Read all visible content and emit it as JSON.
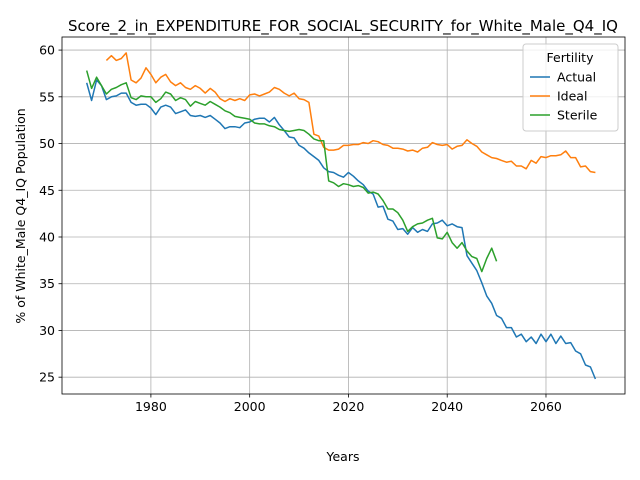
{
  "chart_data": {
    "type": "line",
    "title": "Score_2_in_EXPENDITURE_FOR_SOCIAL_SECURITY_for_White_Male_Q4_IQ",
    "xlabel": "Years",
    "ylabel": "% of White_Male Q4_IQ Population",
    "xlim": [
      1962,
      2076
    ],
    "ylim": [
      23.2,
      61.4
    ],
    "xticks": [
      1980,
      2000,
      2020,
      2040,
      2060
    ],
    "yticks": [
      25,
      30,
      35,
      40,
      45,
      50,
      55,
      60
    ],
    "grid": true,
    "legend": {
      "title": "Fertility",
      "placement": "top-right"
    },
    "series": [
      {
        "name": "Actual",
        "color": "#1f77b4",
        "x": [
          1967,
          1968,
          1969,
          1970,
          1971,
          1972,
          1973,
          1974,
          1975,
          1976,
          1977,
          1978,
          1979,
          1980,
          1981,
          1982,
          1983,
          1984,
          1985,
          1986,
          1987,
          1988,
          1989,
          1990,
          1991,
          1992,
          1993,
          1994,
          1995,
          1996,
          1997,
          1998,
          1999,
          2000,
          2001,
          2002,
          2003,
          2004,
          2005,
          2006,
          2007,
          2008,
          2009,
          2010,
          2011,
          2012,
          2013,
          2014,
          2015,
          2016,
          2017,
          2018,
          2019,
          2020,
          2021,
          2022,
          2023,
          2024,
          2025,
          2026,
          2027,
          2028,
          2029,
          2030,
          2031,
          2032,
          2033,
          2034,
          2035,
          2036,
          2037,
          2038,
          2039,
          2040,
          2041,
          2042,
          2043,
          2044,
          2045,
          2046,
          2047,
          2048,
          2049,
          2050,
          2051,
          2052,
          2053,
          2054,
          2055,
          2056,
          2057,
          2058,
          2059,
          2060,
          2061,
          2062,
          2063,
          2064,
          2065,
          2066,
          2067,
          2068,
          2069,
          2070
        ],
        "y": [
          56.5,
          54.6,
          56.8,
          56.2,
          54.7,
          55.0,
          55.1,
          55.4,
          55.4,
          54.4,
          54.1,
          54.2,
          54.2,
          53.8,
          53.1,
          53.9,
          54.1,
          53.9,
          53.2,
          53.4,
          53.6,
          53.0,
          52.9,
          53.0,
          52.8,
          53.0,
          52.6,
          52.2,
          51.6,
          51.8,
          51.8,
          51.7,
          52.2,
          52.3,
          52.6,
          52.7,
          52.7,
          52.3,
          52.8,
          52.0,
          51.4,
          50.7,
          50.6,
          49.8,
          49.5,
          49.0,
          48.6,
          48.2,
          47.4,
          47.0,
          46.9,
          46.6,
          46.4,
          46.9,
          46.5,
          46.0,
          45.6,
          44.9,
          44.6,
          43.2,
          43.3,
          41.9,
          41.7,
          40.8,
          40.9,
          40.3,
          41.0,
          40.5,
          40.8,
          40.6,
          41.4,
          41.5,
          41.8,
          41.2,
          41.4,
          41.1,
          41.0,
          38.0,
          37.2,
          36.4,
          35.1,
          33.7,
          32.9,
          31.6,
          31.3,
          30.3,
          30.3,
          29.3,
          29.6,
          28.8,
          29.3,
          28.6,
          29.6,
          28.8,
          29.6,
          28.6,
          29.4,
          28.6,
          28.7,
          27.8,
          27.5,
          26.3,
          26.1,
          24.8
        ]
      },
      {
        "name": "Ideal",
        "color": "#ff7f0e",
        "x": [
          1971,
          1972,
          1973,
          1974,
          1975,
          1976,
          1977,
          1978,
          1979,
          1980,
          1981,
          1982,
          1983,
          1984,
          1985,
          1986,
          1987,
          1988,
          1989,
          1990,
          1991,
          1992,
          1993,
          1994,
          1995,
          1996,
          1997,
          1998,
          1999,
          2000,
          2001,
          2002,
          2003,
          2004,
          2005,
          2006,
          2007,
          2008,
          2009,
          2010,
          2011,
          2012,
          2013,
          2014,
          2015,
          2016,
          2017,
          2018,
          2019,
          2020,
          2021,
          2022,
          2023,
          2024,
          2025,
          2026,
          2027,
          2028,
          2029,
          2030,
          2031,
          2032,
          2033,
          2034,
          2035,
          2036,
          2037,
          2038,
          2039,
          2040,
          2041,
          2042,
          2043,
          2044,
          2045,
          2046,
          2047,
          2048,
          2049,
          2050,
          2051,
          2052,
          2053,
          2054,
          2055,
          2056,
          2057,
          2058,
          2059,
          2060,
          2061,
          2062,
          2063,
          2064,
          2065,
          2066,
          2067,
          2068,
          2069,
          2070
        ],
        "y": [
          58.9,
          59.4,
          58.9,
          59.1,
          59.7,
          56.8,
          56.5,
          57.0,
          58.1,
          57.4,
          56.5,
          57.1,
          57.4,
          56.6,
          56.2,
          56.5,
          56.0,
          55.8,
          56.2,
          55.9,
          55.4,
          55.9,
          55.5,
          54.8,
          54.5,
          54.8,
          54.6,
          54.8,
          54.6,
          55.2,
          55.3,
          55.1,
          55.3,
          55.5,
          56.0,
          55.8,
          55.4,
          55.1,
          55.4,
          54.8,
          54.7,
          54.4,
          51.0,
          50.8,
          49.6,
          49.3,
          49.3,
          49.4,
          49.8,
          49.8,
          49.9,
          49.9,
          50.1,
          50.0,
          50.3,
          50.2,
          49.9,
          49.8,
          49.5,
          49.5,
          49.4,
          49.2,
          49.3,
          49.1,
          49.5,
          49.6,
          50.1,
          49.9,
          49.8,
          49.9,
          49.4,
          49.7,
          49.8,
          50.4,
          50.0,
          49.7,
          49.1,
          48.8,
          48.5,
          48.4,
          48.2,
          48.0,
          48.1,
          47.6,
          47.6,
          47.3,
          48.2,
          47.9,
          48.6,
          48.5,
          48.7,
          48.7,
          48.8,
          49.2,
          48.5,
          48.5,
          47.5,
          47.6,
          47.0,
          46.9
        ]
      },
      {
        "name": "Sterile",
        "color": "#2ca02c",
        "x": [
          1967,
          1968,
          1969,
          1970,
          1971,
          1972,
          1973,
          1974,
          1975,
          1976,
          1977,
          1978,
          1979,
          1980,
          1981,
          1982,
          1983,
          1984,
          1985,
          1986,
          1987,
          1988,
          1989,
          1990,
          1991,
          1992,
          1993,
          1994,
          1995,
          1996,
          1997,
          1998,
          1999,
          2000,
          2001,
          2002,
          2003,
          2004,
          2005,
          2006,
          2007,
          2008,
          2009,
          2010,
          2011,
          2012,
          2013,
          2014,
          2015,
          2016,
          2017,
          2018,
          2019,
          2020,
          2021,
          2022,
          2023,
          2024,
          2025,
          2026,
          2027,
          2028,
          2029,
          2030,
          2031,
          2032,
          2033,
          2034,
          2035,
          2036,
          2037,
          2038,
          2039,
          2040,
          2041,
          2042,
          2043,
          2044,
          2045,
          2046,
          2047,
          2048,
          2049,
          2050
        ],
        "y": [
          57.8,
          55.9,
          57.1,
          56.2,
          55.3,
          55.8,
          56.0,
          56.3,
          56.5,
          54.9,
          54.7,
          55.1,
          55.0,
          55.0,
          54.4,
          54.8,
          55.5,
          55.3,
          54.6,
          54.9,
          54.7,
          54.0,
          54.5,
          54.3,
          54.1,
          54.5,
          54.2,
          53.9,
          53.5,
          53.3,
          52.9,
          52.8,
          52.7,
          52.6,
          52.2,
          52.1,
          52.1,
          51.9,
          51.8,
          51.5,
          51.4,
          51.3,
          51.4,
          51.5,
          51.4,
          51.0,
          50.5,
          50.3,
          50.3,
          46.0,
          45.8,
          45.4,
          45.7,
          45.6,
          45.4,
          45.5,
          45.3,
          44.7,
          44.8,
          44.6,
          43.9,
          43.0,
          43.0,
          42.6,
          41.8,
          40.6,
          41.1,
          41.4,
          41.5,
          41.8,
          42.0,
          39.9,
          39.8,
          40.5,
          39.4,
          38.8,
          39.4,
          38.5,
          37.9,
          37.7,
          36.3,
          37.7,
          38.8,
          37.4
        ]
      }
    ]
  }
}
